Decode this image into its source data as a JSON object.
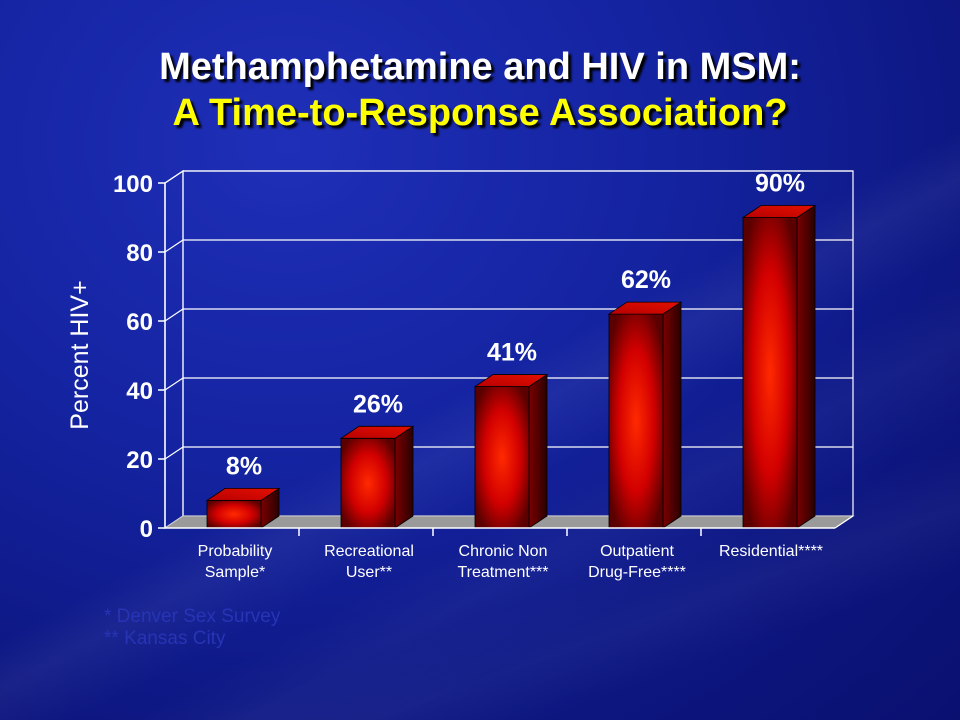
{
  "slide": {
    "title_line1": "Methamphetamine and HIV in MSM:",
    "title_line2": "A Time-to-Response Association?",
    "title_line1_color": "#ffffff",
    "title_line2_color": "#ffff00",
    "footnotes": [
      "* Denver Sex Survey",
      "** Kansas City"
    ]
  },
  "chart_data": {
    "type": "bar",
    "title": "",
    "xlabel": "",
    "ylabel": "Percent HIV+",
    "ylim": [
      0,
      100
    ],
    "yticks": [
      0,
      20,
      40,
      60,
      80,
      100
    ],
    "categories": [
      [
        "Probability",
        "Sample*"
      ],
      [
        "Recreational",
        "User**"
      ],
      [
        "Chronic Non",
        "Treatment***"
      ],
      [
        "Outpatient",
        "Drug-Free****"
      ],
      [
        "Residential****"
      ]
    ],
    "values": [
      8,
      26,
      41,
      62,
      90
    ],
    "data_labels": [
      "8%",
      "26%",
      "41%",
      "62%",
      "90%"
    ],
    "bar_color": "#ff1a00",
    "grid": true,
    "legend": "none"
  }
}
